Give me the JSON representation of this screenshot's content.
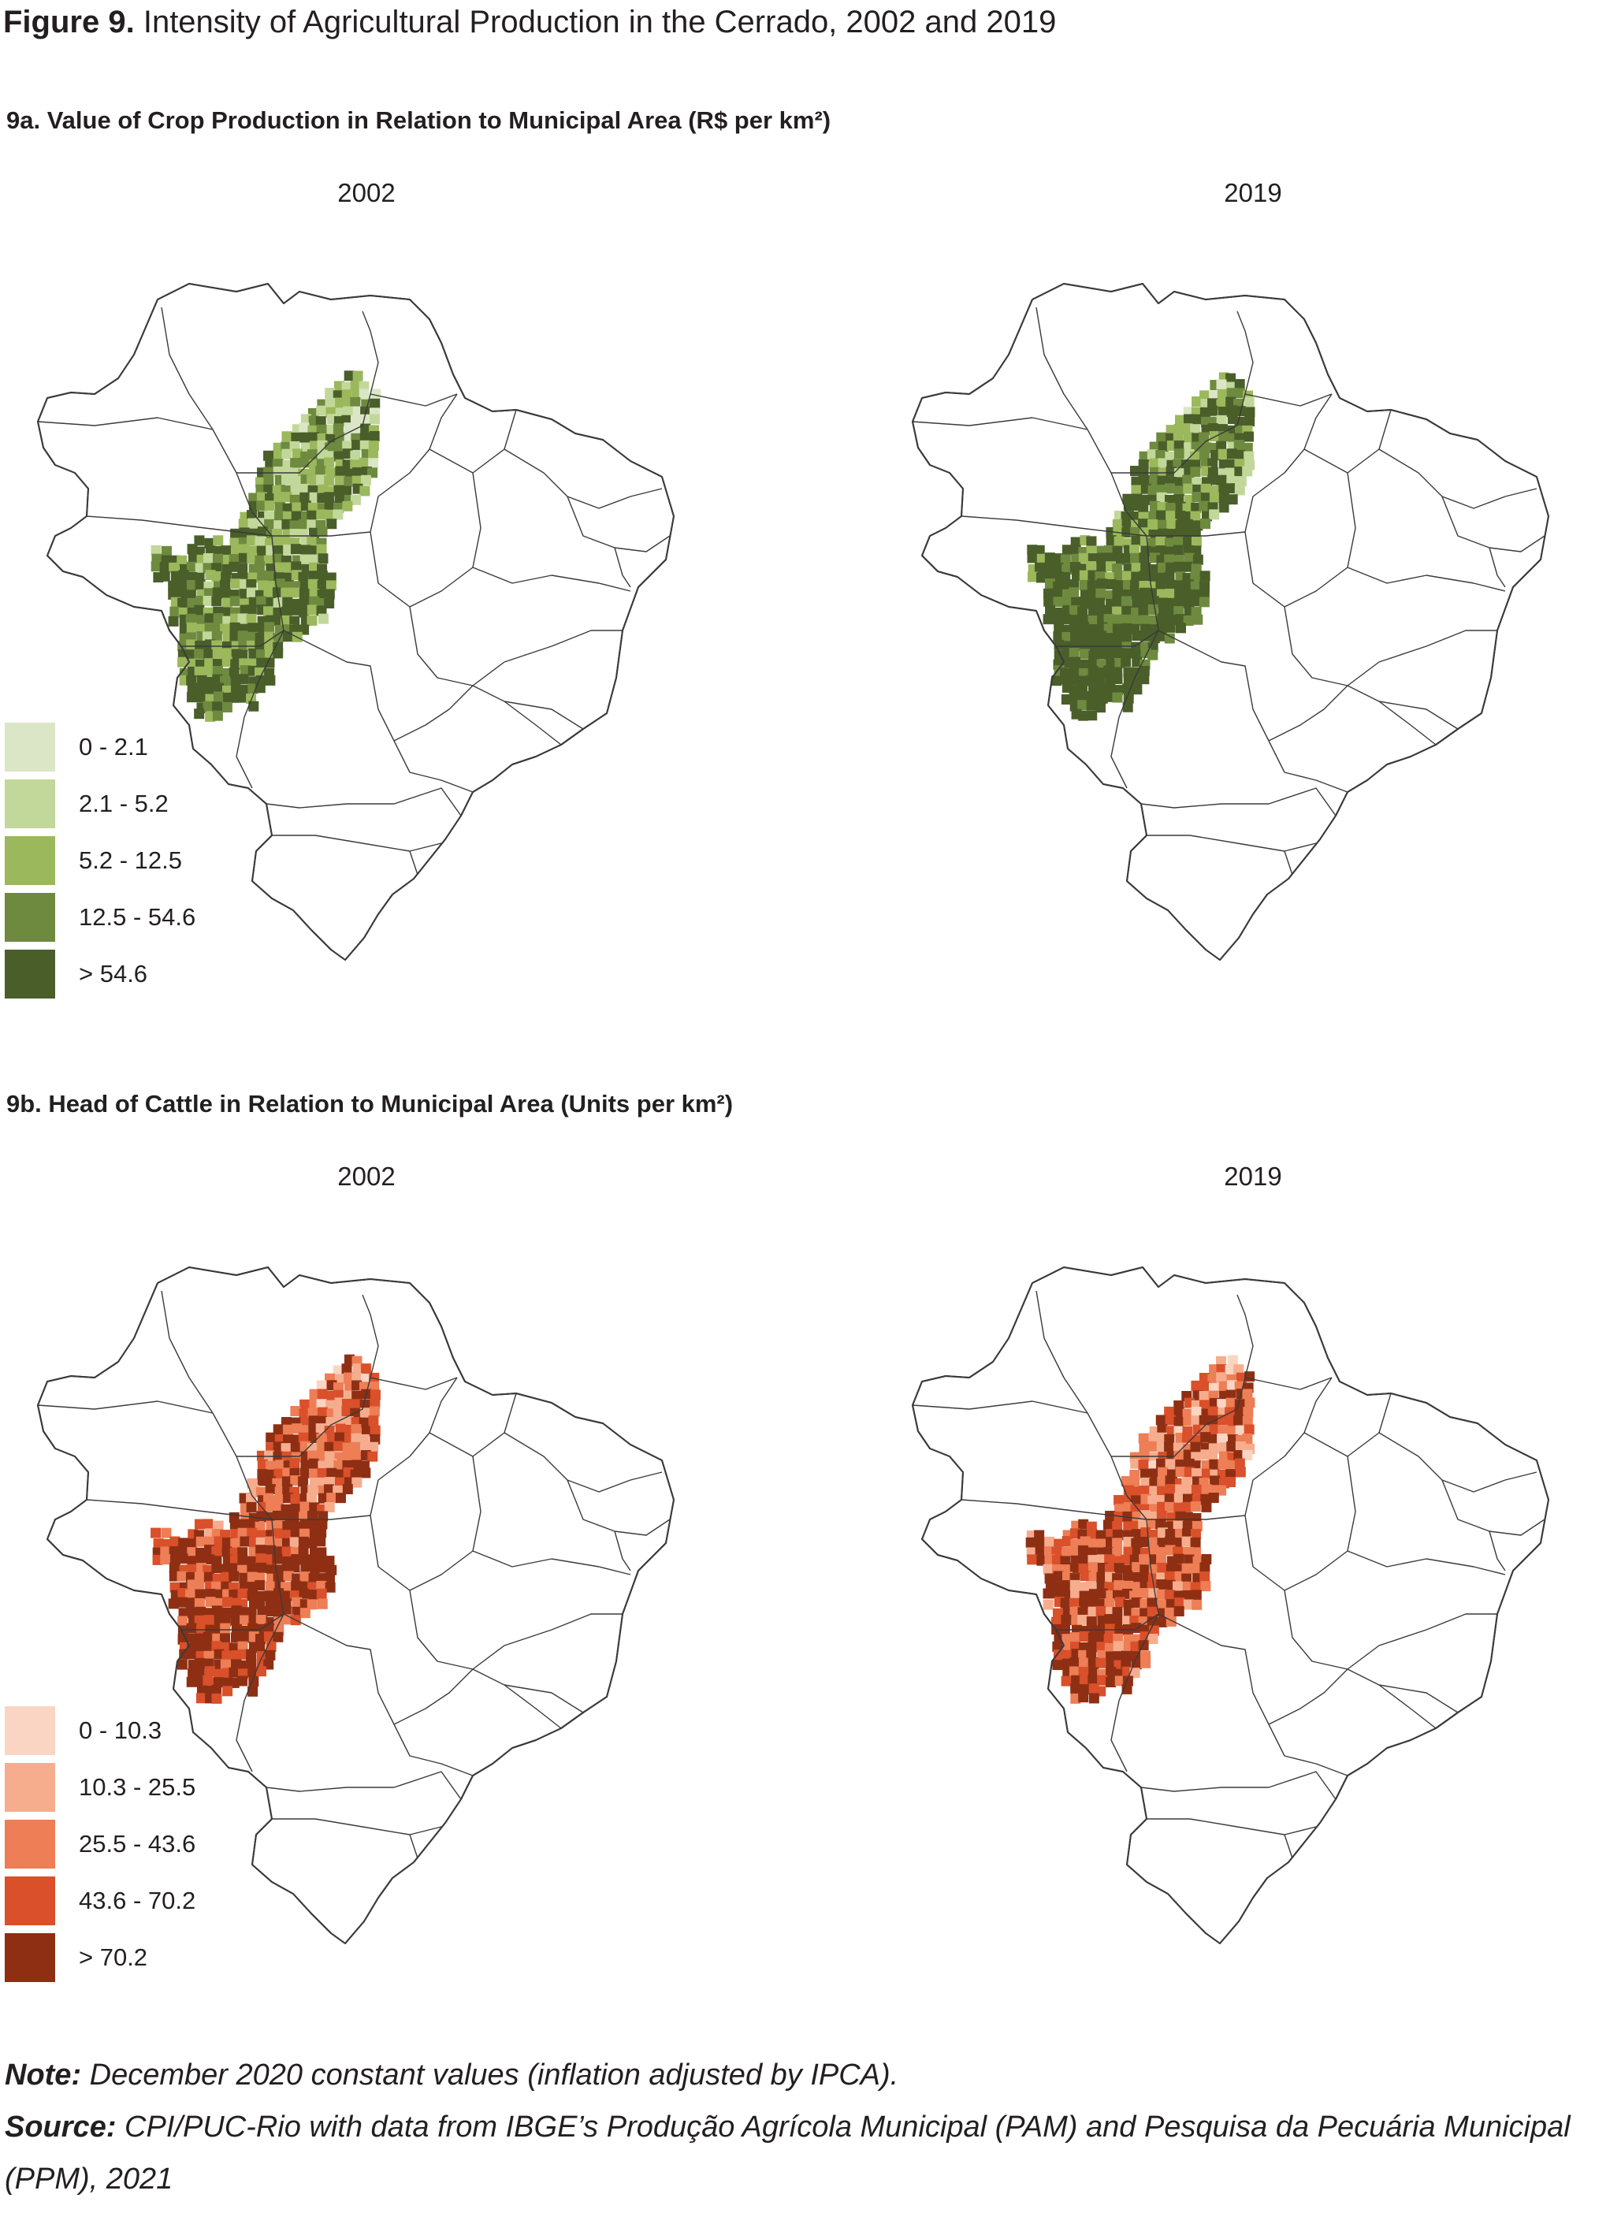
{
  "figure": {
    "title_lead": "Figure 9.",
    "title_rest": "Intensity of Agricultural Production in the Cerrado, 2002 and 2019"
  },
  "panels": [
    {
      "title": "9a. Value of Crop Production in Relation to Municipal Area (R$ per km²)",
      "years": [
        "2002",
        "2019"
      ],
      "legend": [
        {
          "label": "0 - 2.1",
          "color": "#dbe6c6"
        },
        {
          "label": "2.1 - 5.2",
          "color": "#c2d89a"
        },
        {
          "label": "5.2 - 12.5",
          "color": "#9bb85c"
        },
        {
          "label": "12.5 - 54.6",
          "color": "#6e8a3f"
        },
        {
          "label": "> 54.6",
          "color": "#4a5e2a"
        }
      ]
    },
    {
      "title": "9b. Head of Cattle in Relation to Municipal Area (Units per km²)",
      "years": [
        "2002",
        "2019"
      ],
      "legend": [
        {
          "label": "0 - 10.3",
          "color": "#fbd5c3"
        },
        {
          "label": "10.3 - 25.5",
          "color": "#f6ad8d"
        },
        {
          "label": "25.5 - 43.6",
          "color": "#ed7e56"
        },
        {
          "label": "43.6 - 70.2",
          "color": "#d9502a"
        },
        {
          "label": "> 70.2",
          "color": "#8e2f14"
        }
      ]
    }
  ],
  "notes": {
    "note_label": "Note:",
    "note_text": "December 2020 constant values (inflation adjusted by IPCA).",
    "source_label": "Source:",
    "source_text": "CPI/PUC-Rio with data from IBGE’s Produção Agrícola Municipal (PAM) and Pesquisa da Pecuária Municipal (PPM), 2021"
  }
}
